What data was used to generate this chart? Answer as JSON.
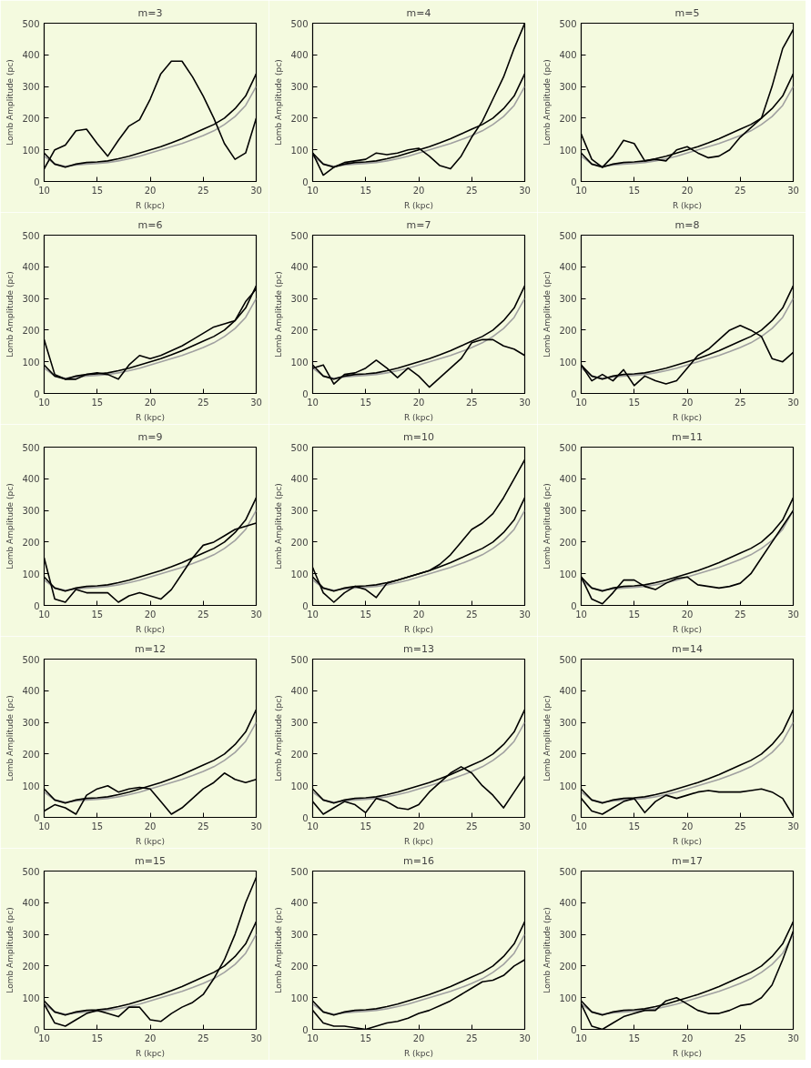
{
  "chart_data": [
    {
      "type": "line",
      "title": "m=3",
      "xlabel": "R (kpc)",
      "ylabel": "Lomb Amplitude (pc)",
      "xlim": [
        10,
        30
      ],
      "ylim": [
        0,
        500
      ],
      "xticks": [
        10,
        15,
        20,
        25,
        30
      ],
      "yticks": [
        0,
        100,
        200,
        300,
        400,
        500
      ],
      "x": [
        10,
        11,
        12,
        13,
        14,
        15,
        16,
        17,
        18,
        19,
        20,
        21,
        22,
        23,
        24,
        25,
        26,
        27,
        28,
        29,
        30
      ],
      "series": [
        {
          "color": "#a0a0a0",
          "values": [
            80,
            55,
            48,
            52,
            55,
            57,
            60,
            65,
            72,
            80,
            90,
            100,
            110,
            120,
            132,
            145,
            160,
            180,
            205,
            240,
            300
          ]
        },
        {
          "color": "#000000",
          "values": [
            90,
            55,
            45,
            55,
            60,
            62,
            65,
            72,
            80,
            90,
            100,
            110,
            122,
            135,
            150,
            165,
            180,
            200,
            230,
            270,
            340
          ]
        },
        {
          "color": "#000000",
          "values": [
            40,
            100,
            115,
            160,
            165,
            120,
            80,
            130,
            175,
            195,
            260,
            340,
            380,
            380,
            330,
            270,
            200,
            120,
            70,
            90,
            200
          ]
        }
      ]
    },
    {
      "type": "line",
      "title": "m=4",
      "xlabel": "R (kpc)",
      "ylabel": "Lomb Amplitude (pc)",
      "xlim": [
        10,
        30
      ],
      "ylim": [
        0,
        500
      ],
      "xticks": [
        10,
        15,
        20,
        25,
        30
      ],
      "yticks": [
        0,
        100,
        200,
        300,
        400,
        500
      ],
      "x": [
        10,
        11,
        12,
        13,
        14,
        15,
        16,
        17,
        18,
        19,
        20,
        21,
        22,
        23,
        24,
        25,
        26,
        27,
        28,
        29,
        30
      ],
      "series": [
        {
          "color": "#a0a0a0",
          "values": [
            80,
            55,
            48,
            52,
            55,
            57,
            60,
            65,
            72,
            80,
            90,
            100,
            110,
            120,
            132,
            145,
            160,
            180,
            205,
            240,
            300
          ]
        },
        {
          "color": "#000000",
          "values": [
            90,
            55,
            45,
            55,
            60,
            62,
            65,
            72,
            80,
            90,
            100,
            110,
            122,
            135,
            150,
            165,
            180,
            200,
            230,
            270,
            340
          ]
        },
        {
          "color": "#000000",
          "values": [
            90,
            20,
            45,
            60,
            65,
            70,
            90,
            85,
            90,
            100,
            105,
            80,
            50,
            40,
            80,
            140,
            190,
            260,
            330,
            420,
            500
          ]
        }
      ]
    },
    {
      "type": "line",
      "title": "m=5",
      "xlabel": "R (kpc)",
      "ylabel": "Lomb Amplitude (pc)",
      "xlim": [
        10,
        30
      ],
      "ylim": [
        0,
        500
      ],
      "xticks": [
        10,
        15,
        20,
        25,
        30
      ],
      "yticks": [
        0,
        100,
        200,
        300,
        400,
        500
      ],
      "x": [
        10,
        11,
        12,
        13,
        14,
        15,
        16,
        17,
        18,
        19,
        20,
        21,
        22,
        23,
        24,
        25,
        26,
        27,
        28,
        29,
        30
      ],
      "series": [
        {
          "color": "#a0a0a0",
          "values": [
            80,
            55,
            48,
            52,
            55,
            57,
            60,
            65,
            72,
            80,
            90,
            100,
            110,
            120,
            132,
            145,
            160,
            180,
            205,
            240,
            300
          ]
        },
        {
          "color": "#000000",
          "values": [
            90,
            55,
            45,
            55,
            60,
            62,
            65,
            72,
            80,
            90,
            100,
            110,
            122,
            135,
            150,
            165,
            180,
            200,
            230,
            270,
            340
          ]
        },
        {
          "color": "#000000",
          "values": [
            150,
            70,
            45,
            80,
            130,
            120,
            65,
            70,
            65,
            100,
            110,
            90,
            75,
            80,
            100,
            140,
            170,
            200,
            300,
            420,
            480
          ]
        }
      ]
    },
    {
      "type": "line",
      "title": "m=6",
      "xlabel": "R (kpc)",
      "ylabel": "Lomb Amplitude (pc)",
      "xlim": [
        10,
        30
      ],
      "ylim": [
        0,
        500
      ],
      "xticks": [
        10,
        15,
        20,
        25,
        30
      ],
      "yticks": [
        0,
        100,
        200,
        300,
        400,
        500
      ],
      "x": [
        10,
        11,
        12,
        13,
        14,
        15,
        16,
        17,
        18,
        19,
        20,
        21,
        22,
        23,
        24,
        25,
        26,
        27,
        28,
        29,
        30
      ],
      "series": [
        {
          "color": "#a0a0a0",
          "values": [
            80,
            55,
            48,
            52,
            55,
            57,
            60,
            65,
            72,
            80,
            90,
            100,
            110,
            120,
            132,
            145,
            160,
            180,
            205,
            240,
            300
          ]
        },
        {
          "color": "#000000",
          "values": [
            90,
            55,
            45,
            55,
            60,
            62,
            65,
            72,
            80,
            90,
            100,
            110,
            122,
            135,
            150,
            165,
            180,
            200,
            230,
            270,
            340
          ]
        },
        {
          "color": "#000000",
          "values": [
            170,
            60,
            45,
            45,
            60,
            65,
            60,
            45,
            90,
            120,
            110,
            120,
            135,
            150,
            170,
            190,
            210,
            220,
            230,
            290,
            330
          ]
        }
      ]
    },
    {
      "type": "line",
      "title": "m=7",
      "xlabel": "R (kpc)",
      "ylabel": "Lomb Amplitude (pc)",
      "xlim": [
        10,
        30
      ],
      "ylim": [
        0,
        500
      ],
      "xticks": [
        10,
        15,
        20,
        25,
        30
      ],
      "yticks": [
        0,
        100,
        200,
        300,
        400,
        500
      ],
      "x": [
        10,
        11,
        12,
        13,
        14,
        15,
        16,
        17,
        18,
        19,
        20,
        21,
        22,
        23,
        24,
        25,
        26,
        27,
        28,
        29,
        30
      ],
      "series": [
        {
          "color": "#a0a0a0",
          "values": [
            80,
            55,
            48,
            52,
            55,
            57,
            60,
            65,
            72,
            80,
            90,
            100,
            110,
            120,
            132,
            145,
            160,
            180,
            205,
            240,
            300
          ]
        },
        {
          "color": "#000000",
          "values": [
            90,
            55,
            45,
            55,
            60,
            62,
            65,
            72,
            80,
            90,
            100,
            110,
            122,
            135,
            150,
            165,
            180,
            200,
            230,
            270,
            340
          ]
        },
        {
          "color": "#000000",
          "values": [
            80,
            90,
            30,
            60,
            65,
            80,
            105,
            80,
            50,
            80,
            55,
            20,
            50,
            80,
            110,
            160,
            170,
            170,
            150,
            140,
            120
          ]
        }
      ]
    },
    {
      "type": "line",
      "title": "m=8",
      "xlabel": "R (kpc)",
      "ylabel": "Lomb Amplitude (pc)",
      "xlim": [
        10,
        30
      ],
      "ylim": [
        0,
        500
      ],
      "xticks": [
        10,
        15,
        20,
        25,
        30
      ],
      "yticks": [
        0,
        100,
        200,
        300,
        400,
        500
      ],
      "x": [
        10,
        11,
        12,
        13,
        14,
        15,
        16,
        17,
        18,
        19,
        20,
        21,
        22,
        23,
        24,
        25,
        26,
        27,
        28,
        29,
        30
      ],
      "series": [
        {
          "color": "#a0a0a0",
          "values": [
            80,
            55,
            48,
            52,
            55,
            57,
            60,
            65,
            72,
            80,
            90,
            100,
            110,
            120,
            132,
            145,
            160,
            180,
            205,
            240,
            300
          ]
        },
        {
          "color": "#000000",
          "values": [
            90,
            55,
            45,
            55,
            60,
            62,
            65,
            72,
            80,
            90,
            100,
            110,
            122,
            135,
            150,
            165,
            180,
            200,
            230,
            270,
            340
          ]
        },
        {
          "color": "#000000",
          "values": [
            90,
            40,
            60,
            40,
            75,
            25,
            55,
            40,
            30,
            40,
            80,
            120,
            140,
            170,
            200,
            215,
            200,
            180,
            110,
            100,
            130
          ]
        }
      ]
    },
    {
      "type": "line",
      "title": "m=9",
      "xlabel": "R (kpc)",
      "ylabel": "Lomb Amplitude (pc)",
      "xlim": [
        10,
        30
      ],
      "ylim": [
        0,
        500
      ],
      "xticks": [
        10,
        15,
        20,
        25,
        30
      ],
      "yticks": [
        0,
        100,
        200,
        300,
        400,
        500
      ],
      "x": [
        10,
        11,
        12,
        13,
        14,
        15,
        16,
        17,
        18,
        19,
        20,
        21,
        22,
        23,
        24,
        25,
        26,
        27,
        28,
        29,
        30
      ],
      "series": [
        {
          "color": "#a0a0a0",
          "values": [
            80,
            55,
            48,
            52,
            55,
            57,
            60,
            65,
            72,
            80,
            90,
            100,
            110,
            120,
            132,
            145,
            160,
            180,
            205,
            240,
            300
          ]
        },
        {
          "color": "#000000",
          "values": [
            90,
            55,
            45,
            55,
            60,
            62,
            65,
            72,
            80,
            90,
            100,
            110,
            122,
            135,
            150,
            165,
            180,
            200,
            230,
            270,
            340
          ]
        },
        {
          "color": "#000000",
          "values": [
            150,
            20,
            10,
            50,
            40,
            40,
            40,
            10,
            30,
            40,
            30,
            20,
            50,
            100,
            150,
            190,
            200,
            220,
            240,
            250,
            260
          ]
        }
      ]
    },
    {
      "type": "line",
      "title": "m=10",
      "xlabel": "R (kpc)",
      "ylabel": "Lomb Amplitude (pc)",
      "xlim": [
        10,
        30
      ],
      "ylim": [
        0,
        500
      ],
      "xticks": [
        10,
        15,
        20,
        25,
        30
      ],
      "yticks": [
        0,
        100,
        200,
        300,
        400,
        500
      ],
      "x": [
        10,
        11,
        12,
        13,
        14,
        15,
        16,
        17,
        18,
        19,
        20,
        21,
        22,
        23,
        24,
        25,
        26,
        27,
        28,
        29,
        30
      ],
      "series": [
        {
          "color": "#a0a0a0",
          "values": [
            80,
            55,
            48,
            52,
            55,
            57,
            60,
            65,
            72,
            80,
            90,
            100,
            110,
            120,
            132,
            145,
            160,
            180,
            205,
            240,
            300
          ]
        },
        {
          "color": "#000000",
          "values": [
            90,
            55,
            45,
            55,
            60,
            62,
            65,
            72,
            80,
            90,
            100,
            110,
            122,
            135,
            150,
            165,
            180,
            200,
            230,
            270,
            340
          ]
        },
        {
          "color": "#000000",
          "values": [
            120,
            40,
            10,
            40,
            60,
            50,
            25,
            70,
            80,
            90,
            100,
            110,
            130,
            160,
            200,
            240,
            260,
            290,
            340,
            400,
            460
          ]
        }
      ]
    },
    {
      "type": "line",
      "title": "m=11",
      "xlabel": "R (kpc)",
      "ylabel": "Lomb Amplitude (pc)",
      "xlim": [
        10,
        30
      ],
      "ylim": [
        0,
        500
      ],
      "xticks": [
        10,
        15,
        20,
        25,
        30
      ],
      "yticks": [
        0,
        100,
        200,
        300,
        400,
        500
      ],
      "x": [
        10,
        11,
        12,
        13,
        14,
        15,
        16,
        17,
        18,
        19,
        20,
        21,
        22,
        23,
        24,
        25,
        26,
        27,
        28,
        29,
        30
      ],
      "series": [
        {
          "color": "#a0a0a0",
          "values": [
            80,
            55,
            48,
            52,
            55,
            57,
            60,
            65,
            72,
            80,
            90,
            100,
            110,
            120,
            132,
            145,
            160,
            180,
            205,
            240,
            300
          ]
        },
        {
          "color": "#000000",
          "values": [
            90,
            55,
            45,
            55,
            60,
            62,
            65,
            72,
            80,
            90,
            100,
            110,
            122,
            135,
            150,
            165,
            180,
            200,
            230,
            270,
            340
          ]
        },
        {
          "color": "#000000",
          "values": [
            90,
            20,
            5,
            40,
            80,
            80,
            60,
            50,
            70,
            85,
            90,
            65,
            60,
            55,
            60,
            70,
            100,
            150,
            200,
            250,
            300
          ]
        }
      ]
    },
    {
      "type": "line",
      "title": "m=12",
      "xlabel": "R (kpc)",
      "ylabel": "Lomb Amplitude (pc)",
      "xlim": [
        10,
        30
      ],
      "ylim": [
        0,
        500
      ],
      "xticks": [
        10,
        15,
        20,
        25,
        30
      ],
      "yticks": [
        0,
        100,
        200,
        300,
        400,
        500
      ],
      "x": [
        10,
        11,
        12,
        13,
        14,
        15,
        16,
        17,
        18,
        19,
        20,
        21,
        22,
        23,
        24,
        25,
        26,
        27,
        28,
        29,
        30
      ],
      "series": [
        {
          "color": "#a0a0a0",
          "values": [
            80,
            55,
            48,
            52,
            55,
            57,
            60,
            65,
            72,
            80,
            90,
            100,
            110,
            120,
            132,
            145,
            160,
            180,
            205,
            240,
            300
          ]
        },
        {
          "color": "#000000",
          "values": [
            90,
            55,
            45,
            55,
            60,
            62,
            65,
            72,
            80,
            90,
            100,
            110,
            122,
            135,
            150,
            165,
            180,
            200,
            230,
            270,
            340
          ]
        },
        {
          "color": "#000000",
          "values": [
            20,
            40,
            30,
            10,
            70,
            90,
            100,
            80,
            90,
            95,
            90,
            50,
            10,
            30,
            60,
            90,
            110,
            140,
            120,
            110,
            120
          ]
        }
      ]
    },
    {
      "type": "line",
      "title": "m=13",
      "xlabel": "R (kpc)",
      "ylabel": "Lomb Amplitude (pc)",
      "xlim": [
        10,
        30
      ],
      "ylim": [
        0,
        500
      ],
      "xticks": [
        10,
        15,
        20,
        25,
        30
      ],
      "yticks": [
        0,
        100,
        200,
        300,
        400,
        500
      ],
      "x": [
        10,
        11,
        12,
        13,
        14,
        15,
        16,
        17,
        18,
        19,
        20,
        21,
        22,
        23,
        24,
        25,
        26,
        27,
        28,
        29,
        30
      ],
      "series": [
        {
          "color": "#a0a0a0",
          "values": [
            80,
            55,
            48,
            52,
            55,
            57,
            60,
            65,
            72,
            80,
            90,
            100,
            110,
            120,
            132,
            145,
            160,
            180,
            205,
            240,
            300
          ]
        },
        {
          "color": "#000000",
          "values": [
            90,
            55,
            45,
            55,
            60,
            62,
            65,
            72,
            80,
            90,
            100,
            110,
            122,
            135,
            150,
            165,
            180,
            200,
            230,
            270,
            340
          ]
        },
        {
          "color": "#000000",
          "values": [
            50,
            10,
            30,
            50,
            40,
            15,
            60,
            50,
            30,
            25,
            40,
            80,
            110,
            140,
            160,
            140,
            100,
            70,
            30,
            80,
            130
          ]
        }
      ]
    },
    {
      "type": "line",
      "title": "m=14",
      "xlabel": "R (kpc)",
      "ylabel": "Lomb Amplitude (pc)",
      "xlim": [
        10,
        30
      ],
      "ylim": [
        0,
        500
      ],
      "xticks": [
        10,
        15,
        20,
        25,
        30
      ],
      "yticks": [
        0,
        100,
        200,
        300,
        400,
        500
      ],
      "x": [
        10,
        11,
        12,
        13,
        14,
        15,
        16,
        17,
        18,
        19,
        20,
        21,
        22,
        23,
        24,
        25,
        26,
        27,
        28,
        29,
        30
      ],
      "series": [
        {
          "color": "#a0a0a0",
          "values": [
            80,
            55,
            48,
            52,
            55,
            57,
            60,
            65,
            72,
            80,
            90,
            100,
            110,
            120,
            132,
            145,
            160,
            180,
            205,
            240,
            300
          ]
        },
        {
          "color": "#000000",
          "values": [
            90,
            55,
            45,
            55,
            60,
            62,
            65,
            72,
            80,
            90,
            100,
            110,
            122,
            135,
            150,
            165,
            180,
            200,
            230,
            270,
            340
          ]
        },
        {
          "color": "#000000",
          "values": [
            60,
            20,
            10,
            30,
            50,
            60,
            15,
            50,
            70,
            60,
            70,
            80,
            85,
            80,
            80,
            80,
            85,
            90,
            80,
            60,
            5
          ]
        }
      ]
    },
    {
      "type": "line",
      "title": "m=15",
      "xlabel": "R (kpc)",
      "ylabel": "Lomb Amplitude (pc)",
      "xlim": [
        10,
        30
      ],
      "ylim": [
        0,
        500
      ],
      "xticks": [
        10,
        15,
        20,
        25,
        30
      ],
      "yticks": [
        0,
        100,
        200,
        300,
        400,
        500
      ],
      "x": [
        10,
        11,
        12,
        13,
        14,
        15,
        16,
        17,
        18,
        19,
        20,
        21,
        22,
        23,
        24,
        25,
        26,
        27,
        28,
        29,
        30
      ],
      "series": [
        {
          "color": "#a0a0a0",
          "values": [
            80,
            55,
            48,
            52,
            55,
            57,
            60,
            65,
            72,
            80,
            90,
            100,
            110,
            120,
            132,
            145,
            160,
            180,
            205,
            240,
            300
          ]
        },
        {
          "color": "#000000",
          "values": [
            90,
            55,
            45,
            55,
            60,
            62,
            65,
            72,
            80,
            90,
            100,
            110,
            122,
            135,
            150,
            165,
            180,
            200,
            230,
            270,
            340
          ]
        },
        {
          "color": "#000000",
          "values": [
            80,
            20,
            10,
            30,
            50,
            60,
            50,
            40,
            70,
            70,
            30,
            25,
            50,
            70,
            85,
            110,
            160,
            220,
            300,
            400,
            480
          ]
        }
      ]
    },
    {
      "type": "line",
      "title": "m=16",
      "xlabel": "R (kpc)",
      "ylabel": "Lomb Amplitude (pc)",
      "xlim": [
        10,
        30
      ],
      "ylim": [
        0,
        500
      ],
      "xticks": [
        10,
        15,
        20,
        25,
        30
      ],
      "yticks": [
        0,
        100,
        200,
        300,
        400,
        500
      ],
      "x": [
        10,
        11,
        12,
        13,
        14,
        15,
        16,
        17,
        18,
        19,
        20,
        21,
        22,
        23,
        24,
        25,
        26,
        27,
        28,
        29,
        30
      ],
      "series": [
        {
          "color": "#a0a0a0",
          "values": [
            80,
            55,
            48,
            52,
            55,
            57,
            60,
            65,
            72,
            80,
            90,
            100,
            110,
            120,
            132,
            145,
            160,
            180,
            205,
            240,
            300
          ]
        },
        {
          "color": "#000000",
          "values": [
            90,
            55,
            45,
            55,
            60,
            62,
            65,
            72,
            80,
            90,
            100,
            110,
            122,
            135,
            150,
            165,
            180,
            200,
            230,
            270,
            340
          ]
        },
        {
          "color": "#000000",
          "values": [
            60,
            20,
            10,
            10,
            5,
            0,
            10,
            20,
            25,
            35,
            50,
            60,
            75,
            90,
            110,
            130,
            150,
            155,
            170,
            200,
            220
          ]
        }
      ]
    },
    {
      "type": "line",
      "title": "m=17",
      "xlabel": "R (kpc)",
      "ylabel": "Lomb Amplitude (pc)",
      "xlim": [
        10,
        30
      ],
      "ylim": [
        0,
        500
      ],
      "xticks": [
        10,
        15,
        20,
        25,
        30
      ],
      "yticks": [
        0,
        100,
        200,
        300,
        400,
        500
      ],
      "x": [
        10,
        11,
        12,
        13,
        14,
        15,
        16,
        17,
        18,
        19,
        20,
        21,
        22,
        23,
        24,
        25,
        26,
        27,
        28,
        29,
        30
      ],
      "series": [
        {
          "color": "#a0a0a0",
          "values": [
            80,
            55,
            48,
            52,
            55,
            57,
            60,
            65,
            72,
            80,
            90,
            100,
            110,
            120,
            132,
            145,
            160,
            180,
            205,
            240,
            300
          ]
        },
        {
          "color": "#000000",
          "values": [
            90,
            55,
            45,
            55,
            60,
            62,
            65,
            72,
            80,
            90,
            100,
            110,
            122,
            135,
            150,
            165,
            180,
            200,
            230,
            270,
            340
          ]
        },
        {
          "color": "#000000",
          "values": [
            80,
            10,
            0,
            20,
            40,
            50,
            60,
            60,
            90,
            100,
            80,
            60,
            50,
            50,
            60,
            75,
            80,
            100,
            140,
            220,
            310
          ]
        }
      ]
    }
  ]
}
